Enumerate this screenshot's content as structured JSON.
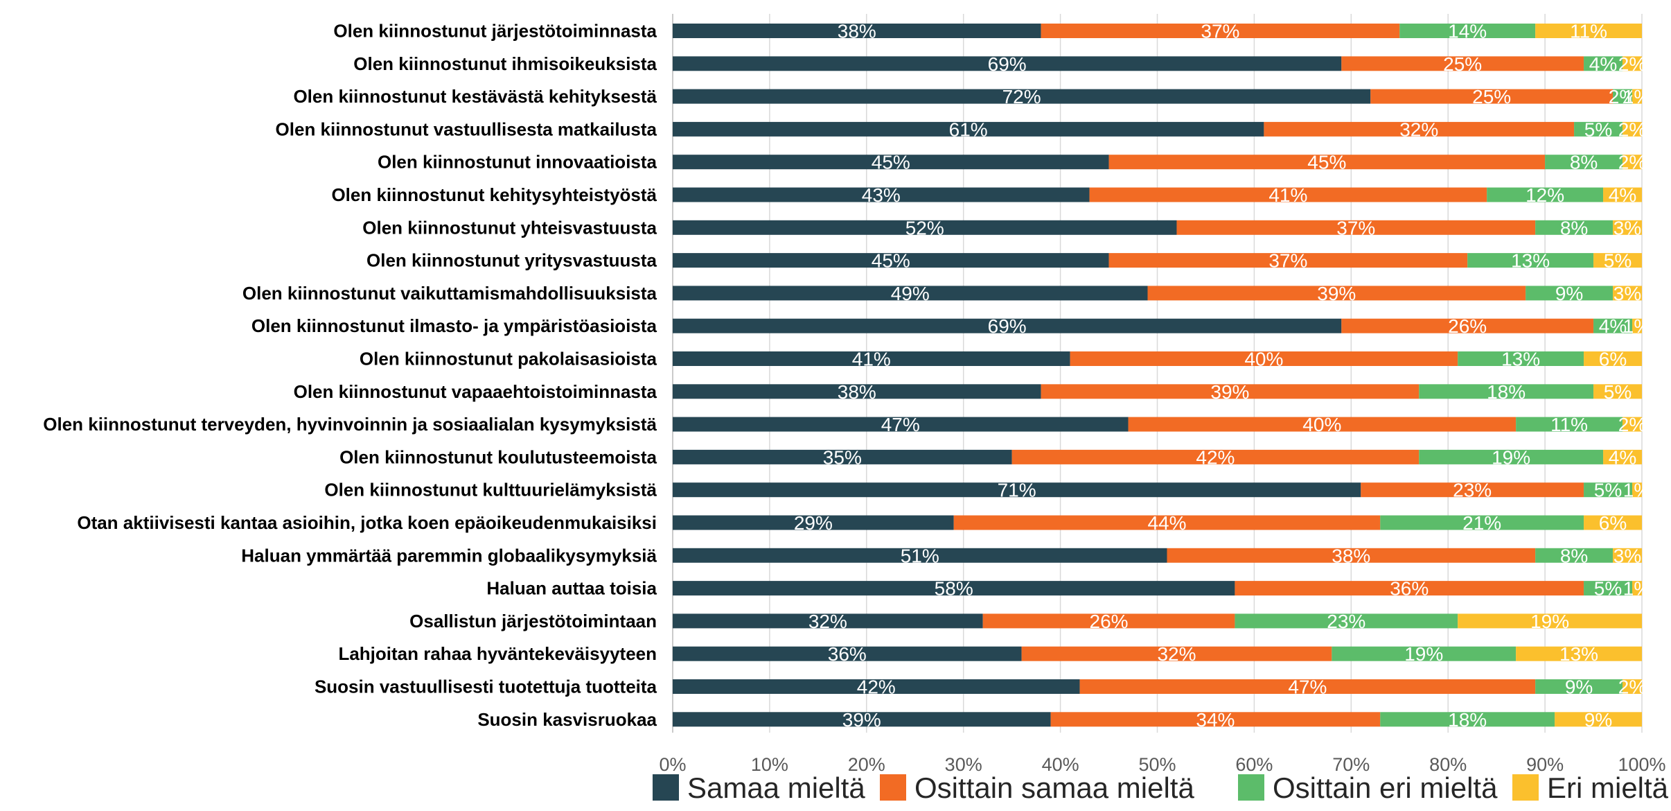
{
  "chart_data": {
    "type": "bar",
    "orientation": "horizontal",
    "stacked": "percent",
    "categories": [
      "Olen kiinnostunut järjestötoiminnasta",
      "Olen kiinnostunut ihmisoikeuksista",
      "Olen kiinnostunut kestävästä kehityksestä",
      "Olen kiinnostunut vastuullisesta matkailusta",
      "Olen kiinnostunut innovaatioista",
      "Olen kiinnostunut kehitysyhteistyöstä",
      "Olen kiinnostunut yhteisvastuusta",
      "Olen kiinnostunut yritysvastuusta",
      "Olen kiinnostunut vaikuttamismahdollisuuksista",
      "Olen kiinnostunut ilmasto- ja ympäristöasioista",
      "Olen kiinnostunut pakolaisasioista",
      "Olen kiinnostunut vapaaehtoistoiminnasta",
      "Olen kiinnostunut terveyden, hyvinvoinnin ja sosiaalialan kysymyksistä",
      "Olen kiinnostunut koulutusteemoista",
      "Olen kiinnostunut kulttuurielämyksistä",
      "Otan aktiivisesti kantaa asioihin, jotka koen epäoikeudenmukaisiksi",
      "Haluan ymmärtää paremmin globaalikysymyksiä",
      "Haluan auttaa toisia",
      "Osallistun järjestötoimintaan",
      "Lahjoitan rahaa hyväntekeväisyyteen",
      "Suosin vastuullisesti tuotettuja tuotteita",
      "Suosin kasvisruokaa"
    ],
    "series": [
      {
        "name": "Samaa mieltä",
        "color": "#264653",
        "values": [
          38,
          69,
          72,
          61,
          45,
          43,
          52,
          45,
          49,
          69,
          41,
          38,
          47,
          35,
          71,
          29,
          51,
          58,
          32,
          36,
          42,
          39
        ]
      },
      {
        "name": "Osittain samaa mieltä",
        "color": "#f26b24",
        "values": [
          37,
          25,
          25,
          32,
          45,
          41,
          37,
          37,
          39,
          26,
          40,
          39,
          40,
          42,
          23,
          44,
          38,
          36,
          26,
          32,
          47,
          34
        ]
      },
      {
        "name": "Osittain eri mieltä",
        "color": "#5cbc6a",
        "values": [
          14,
          4,
          2,
          5,
          8,
          12,
          8,
          13,
          9,
          4,
          13,
          18,
          11,
          19,
          5,
          21,
          8,
          5,
          23,
          19,
          9,
          18
        ]
      },
      {
        "name": "Eri mieltä",
        "color": "#fbc02d",
        "values": [
          11,
          2,
          1,
          2,
          2,
          4,
          3,
          5,
          3,
          1,
          6,
          5,
          2,
          4,
          1,
          6,
          3,
          1,
          19,
          13,
          2,
          9
        ]
      }
    ],
    "data_label_text": [
      [
        "38%",
        "37%",
        "14%",
        "11%"
      ],
      [
        "69%",
        "25%",
        "4%",
        "2%"
      ],
      [
        "72%",
        "25%",
        "2%",
        "1%"
      ],
      [
        "61%",
        "32%",
        "5%",
        "2%"
      ],
      [
        "45%",
        "45%",
        "8%",
        "2%"
      ],
      [
        "43%",
        "41%",
        "12%",
        "4%"
      ],
      [
        "52%",
        "37%",
        "8%",
        "3%"
      ],
      [
        "45%",
        "37%",
        "13%",
        "5%"
      ],
      [
        "49%",
        "39%",
        "9%",
        "3%"
      ],
      [
        "69%",
        "26%",
        "4%",
        "1%"
      ],
      [
        "41%",
        "40%",
        "13%",
        "6%"
      ],
      [
        "38%",
        "39%",
        "18%",
        "5%"
      ],
      [
        "47%",
        "40%",
        "11%",
        "2%"
      ],
      [
        "35%",
        "42%",
        "19%",
        "4%"
      ],
      [
        "71%",
        "23%",
        "5%",
        "1%"
      ],
      [
        "29%",
        "44%",
        "21%",
        "6%"
      ],
      [
        "51%",
        "38%",
        "8%",
        "3%"
      ],
      [
        "58%",
        "36%",
        "5%",
        "1%"
      ],
      [
        "32%",
        "26%",
        "23%",
        "19%"
      ],
      [
        "36%",
        "32%",
        "19%",
        "13%"
      ],
      [
        "42%",
        "47%",
        "9%",
        "2%"
      ],
      [
        "39%",
        "34%",
        "18%",
        "9%"
      ]
    ],
    "x_ticks": [
      "0%",
      "10%",
      "20%",
      "30%",
      "40%",
      "50%",
      "60%",
      "70%",
      "80%",
      "90%",
      "100%"
    ],
    "xlim": [
      0,
      100
    ],
    "grid": "vertical",
    "legend_position": "bottom-right",
    "title": "",
    "xlabel": "",
    "ylabel": ""
  }
}
